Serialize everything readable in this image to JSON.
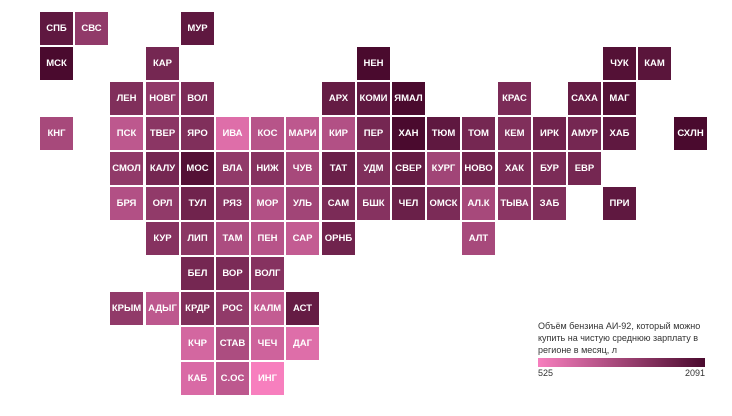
{
  "map": {
    "regions": [
      {
        "label": "СПБ",
        "value": 1900,
        "row": 0,
        "col": 0
      },
      {
        "label": "СВС",
        "value": 1450,
        "row": 0,
        "col": 1
      },
      {
        "label": "МУР",
        "value": 1900,
        "row": 0,
        "col": 4
      },
      {
        "label": "МСК",
        "value": 2091,
        "row": 1,
        "col": 0
      },
      {
        "label": "КАР",
        "value": 1700,
        "row": 1,
        "col": 3
      },
      {
        "label": "НЕН",
        "value": 2091,
        "row": 1,
        "col": 9
      },
      {
        "label": "ЧУК",
        "value": 2000,
        "row": 1,
        "col": 16
      },
      {
        "label": "КАМ",
        "value": 1950,
        "row": 1,
        "col": 17
      },
      {
        "label": "ЛЕН",
        "value": 1600,
        "row": 2,
        "col": 2
      },
      {
        "label": "НОВГ",
        "value": 1450,
        "row": 2,
        "col": 3
      },
      {
        "label": "ВОЛ",
        "value": 1650,
        "row": 2,
        "col": 4
      },
      {
        "label": "АРХ",
        "value": 1850,
        "row": 2,
        "col": 8
      },
      {
        "label": "КОМИ",
        "value": 1900,
        "row": 2,
        "col": 9
      },
      {
        "label": "ЯМАЛ",
        "value": 2091,
        "row": 2,
        "col": 10
      },
      {
        "label": "КРАС",
        "value": 1650,
        "row": 2,
        "col": 13
      },
      {
        "label": "САХА",
        "value": 1850,
        "row": 2,
        "col": 15
      },
      {
        "label": "МАГ",
        "value": 2000,
        "row": 2,
        "col": 16
      },
      {
        "label": "КНГ",
        "value": 1250,
        "row": 3,
        "col": 0
      },
      {
        "label": "ПСК",
        "value": 1050,
        "row": 3,
        "col": 2
      },
      {
        "label": "ТВЕР",
        "value": 1500,
        "row": 3,
        "col": 3
      },
      {
        "label": "ЯРО",
        "value": 1600,
        "row": 3,
        "col": 4
      },
      {
        "label": "ИВА",
        "value": 750,
        "row": 3,
        "col": 5
      },
      {
        "label": "КОС",
        "value": 1100,
        "row": 3,
        "col": 6
      },
      {
        "label": "МАРИ",
        "value": 1050,
        "row": 3,
        "col": 7
      },
      {
        "label": "КИР",
        "value": 1150,
        "row": 3,
        "col": 8
      },
      {
        "label": "ПЕР",
        "value": 1700,
        "row": 3,
        "col": 9
      },
      {
        "label": "ХАН",
        "value": 2091,
        "row": 3,
        "col": 10
      },
      {
        "label": "ТЮМ",
        "value": 1900,
        "row": 3,
        "col": 11
      },
      {
        "label": "ТОМ",
        "value": 1700,
        "row": 3,
        "col": 12
      },
      {
        "label": "КЕМ",
        "value": 1600,
        "row": 3,
        "col": 13
      },
      {
        "label": "ИРК",
        "value": 1750,
        "row": 3,
        "col": 14
      },
      {
        "label": "АМУР",
        "value": 1700,
        "row": 3,
        "col": 15
      },
      {
        "label": "ХАБ",
        "value": 1900,
        "row": 3,
        "col": 16
      },
      {
        "label": "СХЛН",
        "value": 2091,
        "row": 3,
        "col": 18
      },
      {
        "label": "СМОЛ",
        "value": 1450,
        "row": 4,
        "col": 2
      },
      {
        "label": "КАЛУ",
        "value": 1700,
        "row": 4,
        "col": 3
      },
      {
        "label": "МОС",
        "value": 2000,
        "row": 4,
        "col": 4
      },
      {
        "label": "ВЛА",
        "value": 1450,
        "row": 4,
        "col": 5
      },
      {
        "label": "НИЖ",
        "value": 1550,
        "row": 4,
        "col": 6
      },
      {
        "label": "ЧУВ",
        "value": 1250,
        "row": 4,
        "col": 7
      },
      {
        "label": "ТАТ",
        "value": 1800,
        "row": 4,
        "col": 8
      },
      {
        "label": "УДМ",
        "value": 1600,
        "row": 4,
        "col": 9
      },
      {
        "label": "СВЕР",
        "value": 1850,
        "row": 4,
        "col": 10
      },
      {
        "label": "КУРГ",
        "value": 1300,
        "row": 4,
        "col": 11
      },
      {
        "label": "НОВО",
        "value": 1750,
        "row": 4,
        "col": 12
      },
      {
        "label": "ХАК",
        "value": 1650,
        "row": 4,
        "col": 13
      },
      {
        "label": "БУР",
        "value": 1650,
        "row": 4,
        "col": 14
      },
      {
        "label": "ЕВР",
        "value": 1700,
        "row": 4,
        "col": 15
      },
      {
        "label": "БРЯ",
        "value": 1150,
        "row": 5,
        "col": 2
      },
      {
        "label": "ОРЛ",
        "value": 1450,
        "row": 5,
        "col": 3
      },
      {
        "label": "ТУЛ",
        "value": 1750,
        "row": 5,
        "col": 4
      },
      {
        "label": "РЯЗ",
        "value": 1550,
        "row": 5,
        "col": 5
      },
      {
        "label": "МОР",
        "value": 1150,
        "row": 5,
        "col": 6
      },
      {
        "label": "УЛЬ",
        "value": 1300,
        "row": 5,
        "col": 7
      },
      {
        "label": "САМ",
        "value": 1650,
        "row": 5,
        "col": 8
      },
      {
        "label": "БШК",
        "value": 1550,
        "row": 5,
        "col": 9
      },
      {
        "label": "ЧЕЛ",
        "value": 1800,
        "row": 5,
        "col": 10
      },
      {
        "label": "ОМСК",
        "value": 1650,
        "row": 5,
        "col": 11
      },
      {
        "label": "АЛ.К",
        "value": 1250,
        "row": 5,
        "col": 12
      },
      {
        "label": "ТЫВА",
        "value": 1500,
        "row": 5,
        "col": 13
      },
      {
        "label": "ЗАБ",
        "value": 1600,
        "row": 5,
        "col": 14
      },
      {
        "label": "ПРИ",
        "value": 1900,
        "row": 5,
        "col": 16
      },
      {
        "label": "КУР",
        "value": 1550,
        "row": 6,
        "col": 3
      },
      {
        "label": "ЛИП",
        "value": 1500,
        "row": 6,
        "col": 4
      },
      {
        "label": "ТАМ",
        "value": 1200,
        "row": 6,
        "col": 5
      },
      {
        "label": "ПЕН",
        "value": 1100,
        "row": 6,
        "col": 6
      },
      {
        "label": "САР",
        "value": 1000,
        "row": 6,
        "col": 7
      },
      {
        "label": "ОРНБ",
        "value": 1750,
        "row": 6,
        "col": 8
      },
      {
        "label": "АЛТ",
        "value": 1250,
        "row": 6,
        "col": 12
      },
      {
        "label": "БЕЛ",
        "value": 1700,
        "row": 7,
        "col": 4
      },
      {
        "label": "ВОР",
        "value": 1650,
        "row": 7,
        "col": 5
      },
      {
        "label": "ВОЛГ",
        "value": 1550,
        "row": 7,
        "col": 6
      },
      {
        "label": "КРЫМ",
        "value": 1450,
        "row": 8,
        "col": 2
      },
      {
        "label": "АДЫГ",
        "value": 1050,
        "row": 8,
        "col": 3
      },
      {
        "label": "КРДР",
        "value": 1600,
        "row": 8,
        "col": 4
      },
      {
        "label": "РОС",
        "value": 1450,
        "row": 8,
        "col": 5
      },
      {
        "label": "КАЛМ",
        "value": 1000,
        "row": 8,
        "col": 6
      },
      {
        "label": "АСТ",
        "value": 1850,
        "row": 8,
        "col": 7
      },
      {
        "label": "КЧР",
        "value": 850,
        "row": 9,
        "col": 4
      },
      {
        "label": "СТАВ",
        "value": 1200,
        "row": 9,
        "col": 5
      },
      {
        "label": "ЧЕЧ",
        "value": 900,
        "row": 9,
        "col": 6
      },
      {
        "label": "ДАГ",
        "value": 750,
        "row": 9,
        "col": 7
      },
      {
        "label": "КАБ",
        "value": 800,
        "row": 10,
        "col": 4
      },
      {
        "label": "С.ОС",
        "value": 1050,
        "row": 10,
        "col": 5
      },
      {
        "label": "ИНГ",
        "value": 525,
        "row": 10,
        "col": 6
      }
    ]
  },
  "legend": {
    "title": "Объём бензина АИ-92, который можно купить на чистую среднюю зарплату в регионе в месяц, л",
    "min_label": "525",
    "max_label": "2091",
    "min": 525,
    "max": 2091,
    "color_low": "#f77fbe",
    "color_high": "#4a0a2e"
  }
}
